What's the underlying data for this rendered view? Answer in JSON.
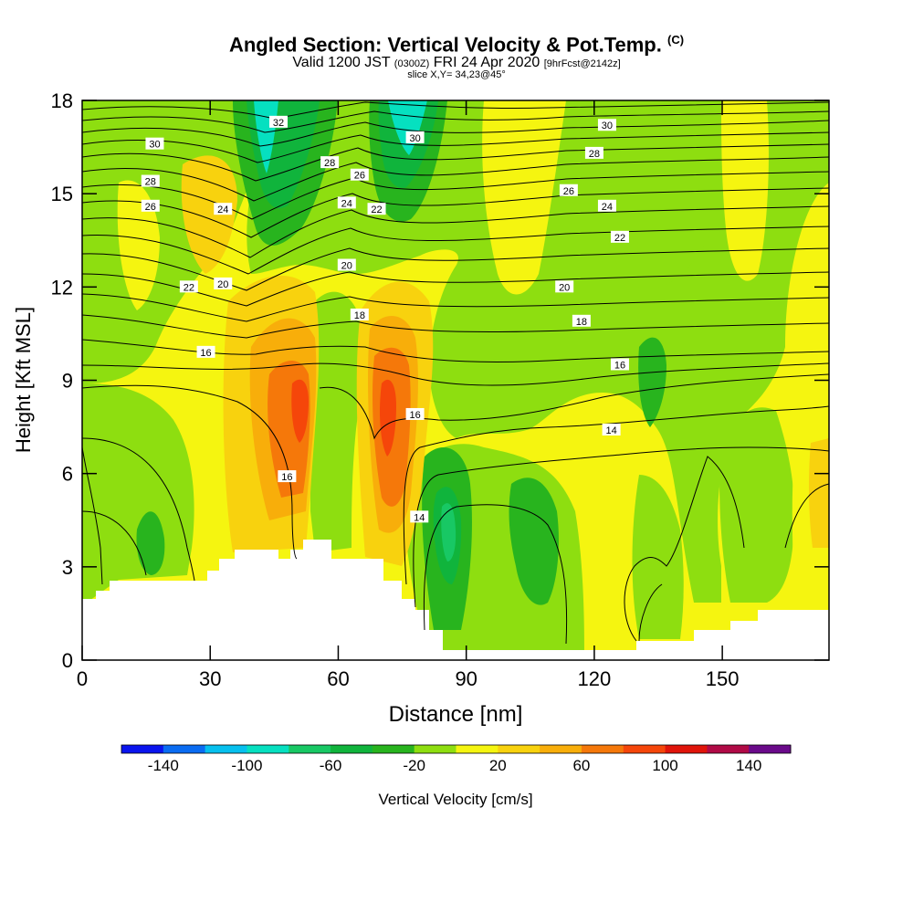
{
  "figure": {
    "title": "Angled Section: Vertical Velocity & Pot.Temp.",
    "title_unit": "(C)",
    "subtitle_a": "Valid 1200 JST",
    "subtitle_b": "(0300Z)",
    "subtitle_c": "FRI 24 Apr 2020",
    "subtitle_d": "[9hrFcst@2142z]",
    "slice_label": "slice X,Y= 34,23@45°"
  },
  "chart_data": {
    "type": "heatmap",
    "xlabel": "Distance [nm]",
    "ylabel": "Height [Kft MSL]",
    "xlim": [
      0,
      175
    ],
    "ylim": [
      0,
      18
    ],
    "x_ticks": [
      "0",
      "30",
      "60",
      "90",
      "120",
      "150"
    ],
    "y_ticks": [
      "0",
      "3",
      "6",
      "9",
      "12",
      "15",
      "18"
    ],
    "colorbar": {
      "label": "Vertical Velocity [cm/s]",
      "tick_labels": [
        "-140",
        "-100",
        "-60",
        "-20",
        "20",
        "60",
        "100",
        "140"
      ],
      "levels": [
        -160,
        -140,
        -120,
        -100,
        -80,
        -60,
        -40,
        -20,
        0,
        20,
        40,
        60,
        80,
        100,
        120,
        140,
        160
      ],
      "colors": [
        "#0a14ee",
        "#0a6cf2",
        "#06c0ee",
        "#06e0c0",
        "#18c864",
        "#10b43c",
        "#28b41e",
        "#8ede10",
        "#f5f510",
        "#f8d20e",
        "#f8ae0a",
        "#f5780a",
        "#f5460a",
        "#e0140a",
        "#b00a46",
        "#6a0a8a"
      ]
    },
    "theta_contour_labels": [
      {
        "label": "32",
        "x": 46,
        "y": 17.3
      },
      {
        "label": "30",
        "x": 17,
        "y": 16.6
      },
      {
        "label": "30",
        "x": 78,
        "y": 16.8
      },
      {
        "label": "30",
        "x": 123,
        "y": 17.2
      },
      {
        "label": "28",
        "x": 16,
        "y": 15.4
      },
      {
        "label": "28",
        "x": 58,
        "y": 16.0
      },
      {
        "label": "28",
        "x": 120,
        "y": 16.3
      },
      {
        "label": "26",
        "x": 16,
        "y": 14.6
      },
      {
        "label": "26",
        "x": 65,
        "y": 15.6
      },
      {
        "label": "26",
        "x": 114,
        "y": 15.1
      },
      {
        "label": "24",
        "x": 33,
        "y": 14.5
      },
      {
        "label": "24",
        "x": 62,
        "y": 14.7
      },
      {
        "label": "24",
        "x": 123,
        "y": 14.6
      },
      {
        "label": "22",
        "x": 69,
        "y": 14.5
      },
      {
        "label": "22",
        "x": 25,
        "y": 12.0
      },
      {
        "label": "22",
        "x": 126,
        "y": 13.6
      },
      {
        "label": "20",
        "x": 62,
        "y": 12.7
      },
      {
        "label": "20",
        "x": 33,
        "y": 12.1
      },
      {
        "label": "20",
        "x": 113,
        "y": 12.0
      },
      {
        "label": "18",
        "x": 65,
        "y": 11.1
      },
      {
        "label": "18",
        "x": 117,
        "y": 10.9
      },
      {
        "label": "16",
        "x": 29,
        "y": 9.9
      },
      {
        "label": "16",
        "x": 78,
        "y": 7.9
      },
      {
        "label": "16",
        "x": 126,
        "y": 9.5
      },
      {
        "label": "16",
        "x": 48,
        "y": 5.9
      },
      {
        "label": "14",
        "x": 124,
        "y": 7.4
      },
      {
        "label": "14",
        "x": 79,
        "y": 4.6
      }
    ],
    "notes": "Shaded field is vertical velocity (cm/s); black contours are potential temperature (C). White area at bottom is terrain."
  }
}
